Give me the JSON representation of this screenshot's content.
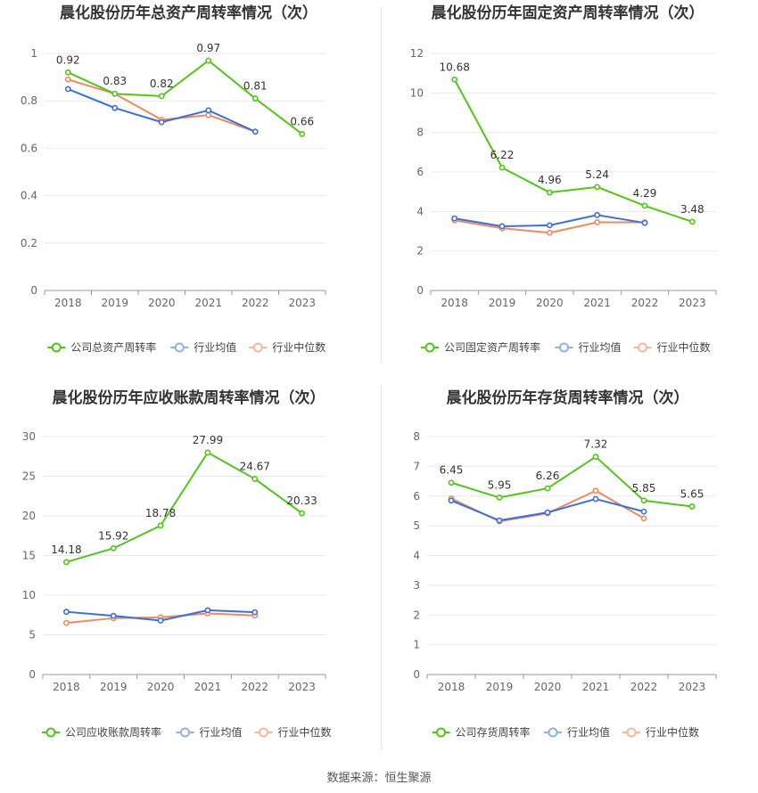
{
  "source": "数据来源：恒生聚源",
  "colors": {
    "company": "#52c41a",
    "industry_avg": "#3a6fdb",
    "industry_median": "#f08a5d",
    "grid": "#e8e8e8",
    "axis": "#666666",
    "title": "#333333"
  },
  "chart_data": [
    {
      "type": "line",
      "title": "晨化股份历年总资产周转率情况（次）",
      "categories": [
        "2018",
        "2019",
        "2020",
        "2021",
        "2022",
        "2023"
      ],
      "ylim": [
        0,
        1
      ],
      "yticks": [
        0,
        0.2,
        0.4,
        0.6,
        0.8,
        1
      ],
      "grid": true,
      "legend_position": "bottom",
      "series": [
        {
          "name": "公司总资产周转率",
          "values": [
            0.92,
            0.83,
            0.82,
            0.97,
            0.81,
            0.66
          ],
          "labels": [
            "0.92",
            "0.83",
            "0.82",
            "0.97",
            "0.81",
            "0.66"
          ]
        },
        {
          "name": "行业均值",
          "values": [
            0.85,
            0.77,
            0.71,
            0.76,
            0.67,
            null
          ]
        },
        {
          "name": "行业中位数",
          "values": [
            0.89,
            0.83,
            0.72,
            0.74,
            0.67,
            null
          ]
        }
      ]
    },
    {
      "type": "line",
      "title": "晨化股份历年固定资产周转率情况（次）",
      "categories": [
        "2018",
        "2019",
        "2020",
        "2021",
        "2022",
        "2023"
      ],
      "ylim": [
        0,
        12
      ],
      "yticks": [
        0,
        2,
        4,
        6,
        8,
        10,
        12
      ],
      "grid": true,
      "legend_position": "bottom",
      "series": [
        {
          "name": "公司固定资产周转率",
          "values": [
            10.68,
            6.22,
            4.96,
            5.24,
            4.29,
            3.48
          ],
          "labels": [
            "10.68",
            "6.22",
            "4.96",
            "5.24",
            "4.29",
            "3.48"
          ]
        },
        {
          "name": "行业均值",
          "values": [
            3.65,
            3.25,
            3.3,
            3.82,
            3.42,
            null
          ]
        },
        {
          "name": "行业中位数",
          "values": [
            3.55,
            3.15,
            2.92,
            3.45,
            3.45,
            null
          ]
        }
      ]
    },
    {
      "type": "line",
      "title": "晨化股份历年应收账款周转率情况（次）",
      "categories": [
        "2018",
        "2019",
        "2020",
        "2021",
        "2022",
        "2023"
      ],
      "ylim": [
        0,
        30
      ],
      "yticks": [
        0,
        5,
        10,
        15,
        20,
        25,
        30
      ],
      "grid": true,
      "legend_position": "bottom",
      "series": [
        {
          "name": "公司应收账款周转率",
          "values": [
            14.18,
            15.92,
            18.78,
            27.99,
            24.67,
            20.33
          ],
          "labels": [
            "14.18",
            "15.92",
            "18.78",
            "27.99",
            "24.67",
            "20.33"
          ]
        },
        {
          "name": "行业均值",
          "values": [
            7.9,
            7.4,
            6.8,
            8.1,
            7.85,
            null
          ]
        },
        {
          "name": "行业中位数",
          "values": [
            6.5,
            7.1,
            7.2,
            7.7,
            7.45,
            null
          ]
        }
      ]
    },
    {
      "type": "line",
      "title": "晨化股份历年存货周转率情况（次）",
      "categories": [
        "2018",
        "2019",
        "2020",
        "2021",
        "2022",
        "2023"
      ],
      "ylim": [
        0,
        8
      ],
      "yticks": [
        0,
        1,
        2,
        3,
        4,
        5,
        6,
        7,
        8
      ],
      "grid": true,
      "legend_position": "bottom",
      "series": [
        {
          "name": "公司存货周转率",
          "values": [
            6.45,
            5.95,
            6.26,
            7.32,
            5.85,
            5.65
          ],
          "labels": [
            "6.45",
            "5.95",
            "6.26",
            "7.32",
            "5.85",
            "5.65"
          ]
        },
        {
          "name": "行业均值",
          "values": [
            5.85,
            5.18,
            5.45,
            5.9,
            5.48,
            null
          ]
        },
        {
          "name": "行业中位数",
          "values": [
            5.92,
            5.15,
            5.42,
            6.18,
            5.25,
            null
          ]
        }
      ]
    }
  ]
}
